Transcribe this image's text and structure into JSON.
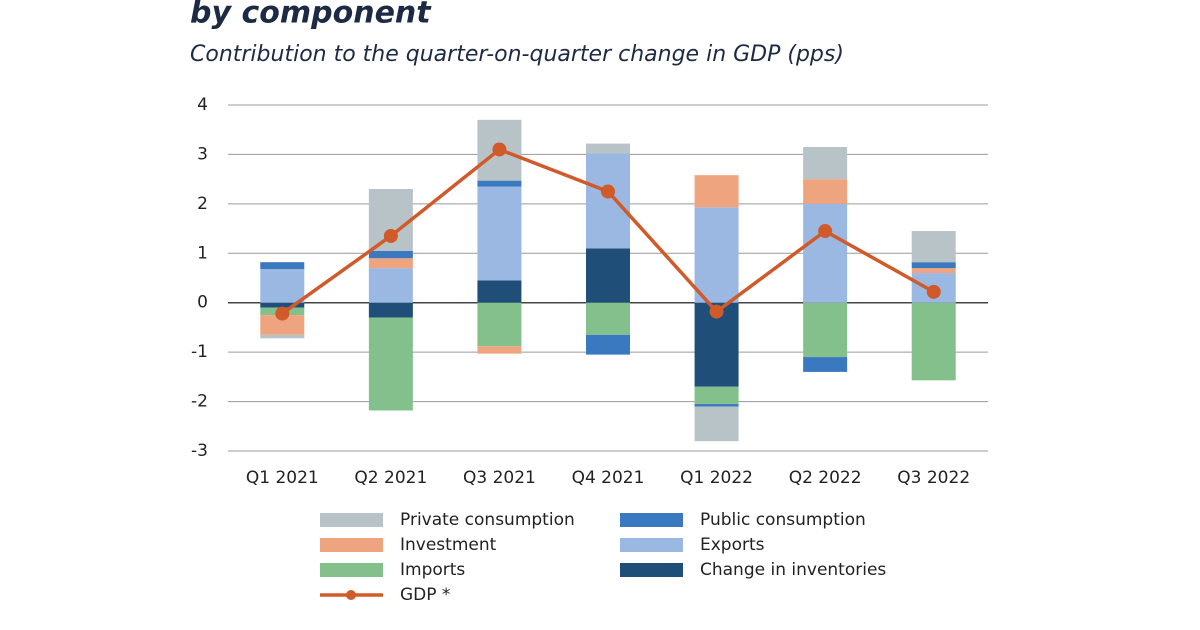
{
  "chart_data": {
    "type": "bar",
    "title": "by component",
    "subtitle": "Contribution to the quarter-on-quarter change in GDP (pps)",
    "categories": [
      "Q1 2021",
      "Q2 2021",
      "Q3 2021",
      "Q4 2021",
      "Q1 2022",
      "Q2 2022",
      "Q3 2022"
    ],
    "series": [
      {
        "name": "Private consumption",
        "color": "#b8c3c7",
        "values": [
          -0.07,
          1.25,
          1.23,
          0.2,
          -0.7,
          0.65,
          0.63
        ]
      },
      {
        "name": "Public consumption",
        "color": "#3a78c0",
        "values": [
          0.14,
          0.15,
          0.12,
          -0.4,
          -0.05,
          -0.3,
          0.12
        ]
      },
      {
        "name": "Investment",
        "color": "#eea47e",
        "values": [
          -0.4,
          0.2,
          -0.15,
          0,
          0.65,
          0.5,
          0.1
        ]
      },
      {
        "name": "Exports",
        "color": "#9ab8e2",
        "values": [
          0.68,
          0.7,
          1.9,
          1.92,
          1.93,
          2.0,
          0.6
        ]
      },
      {
        "name": "Imports",
        "color": "#84c08c",
        "values": [
          -0.15,
          -1.88,
          -0.88,
          -0.65,
          -0.35,
          -1.1,
          -1.57
        ]
      },
      {
        "name": "Change in inventories",
        "color": "#1f4e79",
        "values": [
          -0.1,
          -0.3,
          0.45,
          1.1,
          -1.7,
          0,
          0
        ]
      },
      {
        "name": "GDP *",
        "color": "#d05a2a",
        "type": "line",
        "values": [
          -0.22,
          1.35,
          3.1,
          2.25,
          -0.18,
          1.45,
          0.22
        ]
      }
    ],
    "ylim": [
      -3,
      4
    ],
    "yticks": [
      -3,
      -2,
      -1,
      0,
      1,
      2,
      3,
      4
    ],
    "grid": true
  }
}
